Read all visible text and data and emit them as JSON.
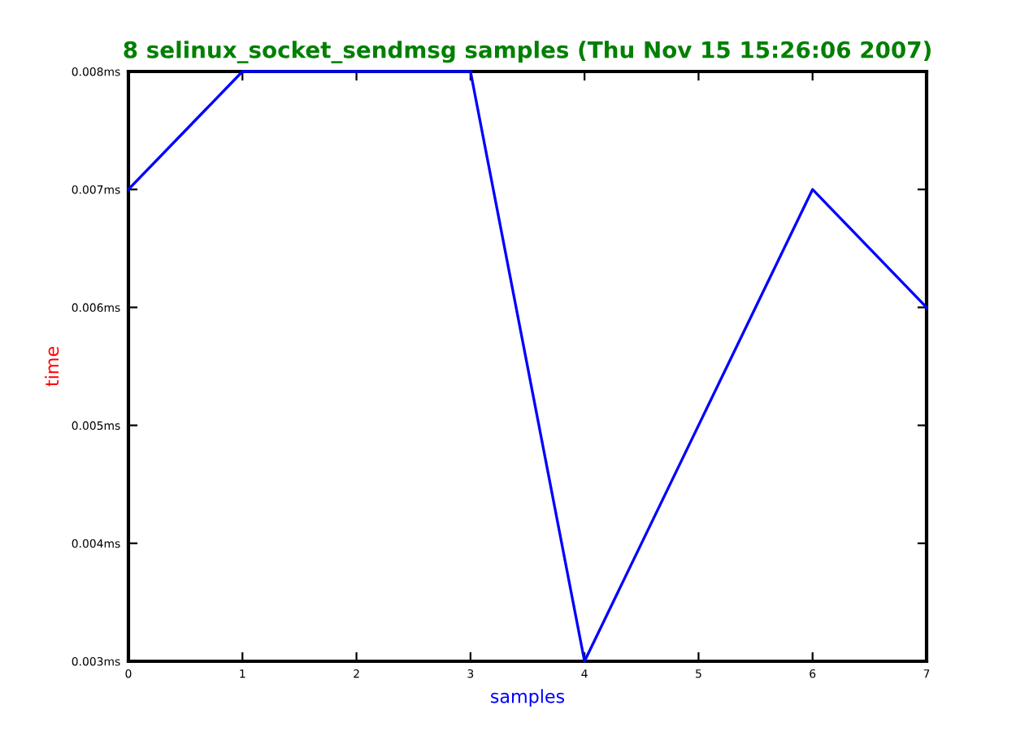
{
  "chart_data": {
    "type": "line",
    "title": "8 selinux_socket_sendmsg samples (Thu Nov 15 15:26:06 2007)",
    "xlabel": "samples",
    "ylabel": "time",
    "x": [
      0,
      1,
      2,
      3,
      4,
      5,
      6,
      7
    ],
    "series": [
      {
        "color": "#0000ff",
        "values": [
          0.007,
          0.008,
          0.008,
          0.008,
          0.003,
          0.005,
          0.007,
          0.006
        ]
      }
    ],
    "xlim": [
      0,
      7
    ],
    "xticks": [
      0,
      1,
      2,
      3,
      4,
      5,
      6,
      7
    ],
    "ylim": [
      0.003,
      0.008
    ],
    "yticks": [
      {
        "value": 0.003,
        "label": "0.003ms"
      },
      {
        "value": 0.004,
        "label": "0.004ms"
      },
      {
        "value": 0.005,
        "label": "0.005ms"
      },
      {
        "value": 0.006,
        "label": "0.006ms"
      },
      {
        "value": 0.007,
        "label": "0.007ms"
      },
      {
        "value": 0.008,
        "label": "0.008ms"
      }
    ],
    "grid": false,
    "legend": false
  }
}
